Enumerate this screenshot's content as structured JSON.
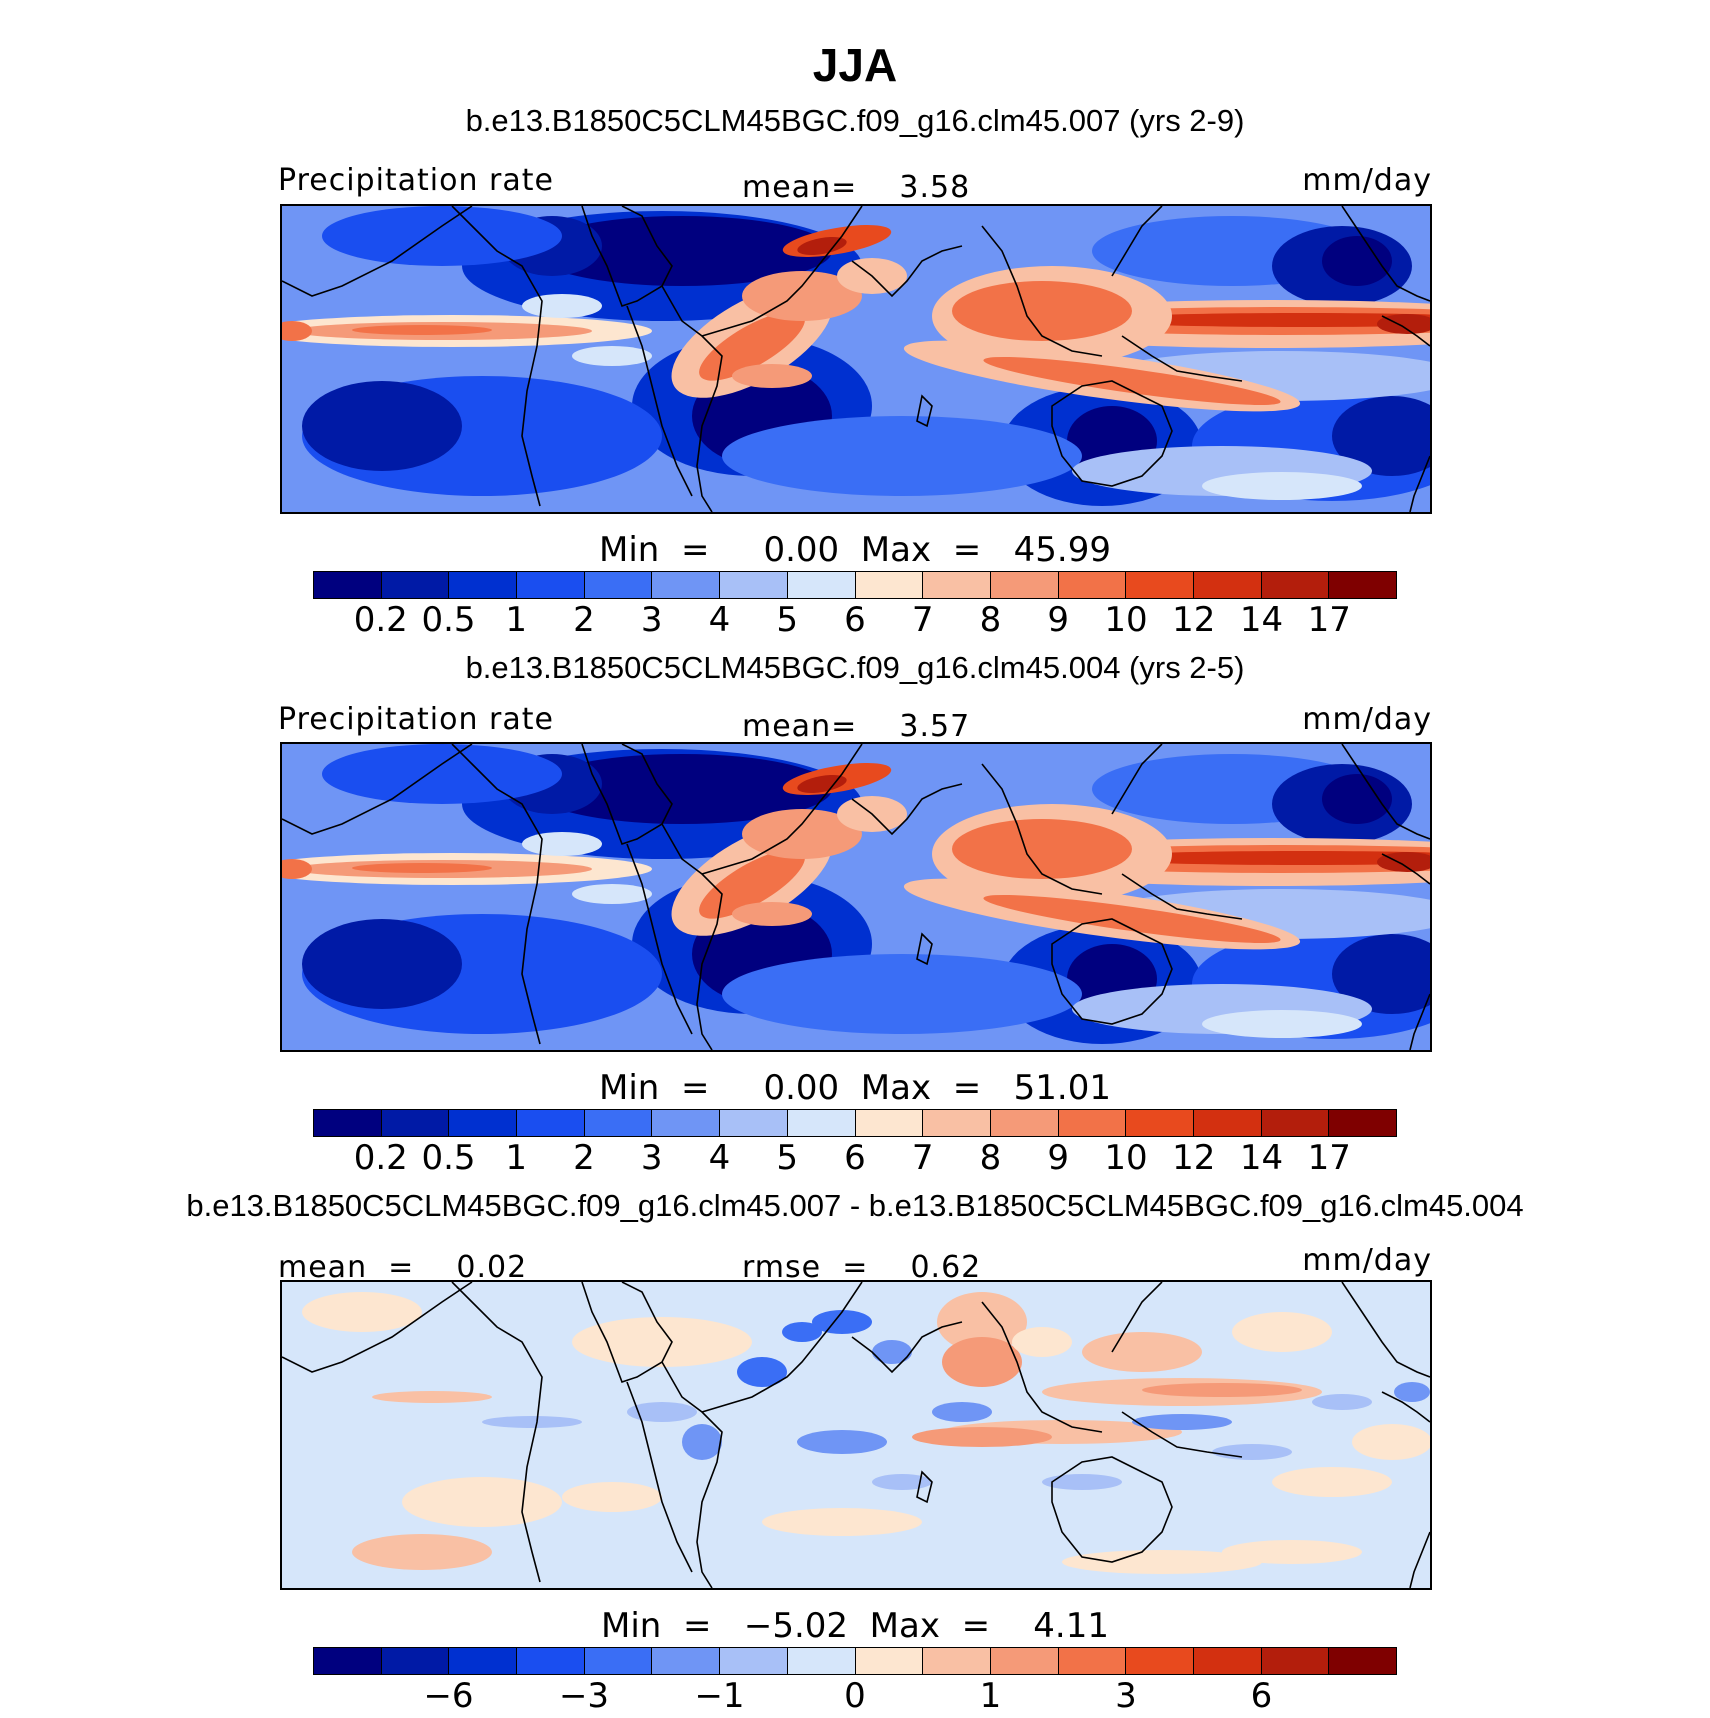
{
  "title": "JJA",
  "palette": [
    "#00007f",
    "#001aa6",
    "#0030d0",
    "#1a4ef0",
    "#3a6ef5",
    "#6f95f5",
    "#a8c0f7",
    "#d6e6fa",
    "#fde6d0",
    "#f9c0a4",
    "#f59a78",
    "#f27248",
    "#e84a1e",
    "#d33010",
    "#b31e0c",
    "#7f0000"
  ],
  "panels": [
    {
      "case_title": "b.e13.B1850C5CLM45BGC.f09_g16.clm45.007 (yrs 2-9)",
      "left_label": "Precipitation rate",
      "mid_label": "mean=    3.58",
      "right_label": "mm/day",
      "minmax": "Min  =     0.00  Max  =   45.99",
      "ticks": [
        "0.2",
        "0.5",
        "1",
        "2",
        "3",
        "4",
        "5",
        "6",
        "7",
        "8",
        "9",
        "10",
        "12",
        "14",
        "17"
      ],
      "field": "abs"
    },
    {
      "case_title": "b.e13.B1850C5CLM45BGC.f09_g16.clm45.004 (yrs 2-5)",
      "left_label": "Precipitation rate",
      "mid_label": "mean=    3.57",
      "right_label": "mm/day",
      "minmax": "Min  =     0.00  Max  =   51.01",
      "ticks": [
        "0.2",
        "0.5",
        "1",
        "2",
        "3",
        "4",
        "5",
        "6",
        "7",
        "8",
        "9",
        "10",
        "12",
        "14",
        "17"
      ],
      "field": "abs"
    },
    {
      "case_title": "b.e13.B1850C5CLM45BGC.f09_g16.clm45.007 - b.e13.B1850C5CLM45BGC.f09_g16.clm45.004",
      "left_label": "mean  =    0.02",
      "mid_label": "rmse  =    0.62",
      "right_label": "mm/day",
      "minmax": "Min  =   −5.02  Max  =    4.11",
      "ticks": [
        "−6",
        "−3",
        "−1",
        "0",
        "1",
        "3",
        "6"
      ],
      "field": "diff"
    }
  ]
}
